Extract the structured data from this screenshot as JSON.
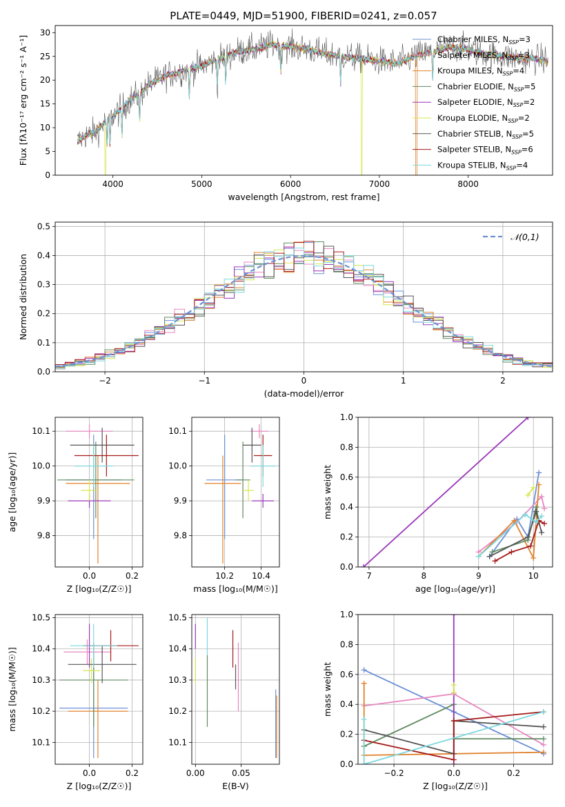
{
  "title": "PLATE=0449, MJD=51900, FIBERID=0241, z=0.057",
  "colors": [
    "#6a8fd6",
    "#e785c0",
    "#e0812a",
    "#5e8a5e",
    "#9a35b8",
    "#d6e64a",
    "#555555",
    "#a51818",
    "#7ad8dd"
  ],
  "legend": [
    {
      "name": "Chabrier MILES, N",
      "sub": "SSP",
      "tail": "=3"
    },
    {
      "name": "Salpeter MILES, N",
      "sub": "SSP",
      "tail": "=3"
    },
    {
      "name": "Kroupa MILES, N",
      "sub": "SSP",
      "tail": "=4"
    },
    {
      "name": "Chabrier ELODIE, N",
      "sub": "SSP",
      "tail": "=5"
    },
    {
      "name": "Salpeter ELODIE, N",
      "sub": "SSP",
      "tail": "=2"
    },
    {
      "name": "Kroupa ELODIE, N",
      "sub": "SSP",
      "tail": "=2"
    },
    {
      "name": "Chabrier STELIB, N",
      "sub": "SSP",
      "tail": "=5"
    },
    {
      "name": "Salpeter STELIB, N",
      "sub": "SSP",
      "tail": "=6"
    },
    {
      "name": "Kroupa STELIB, N",
      "sub": "SSP",
      "tail": "=4"
    }
  ],
  "chart_data": [
    {
      "id": "spectrum",
      "type": "line",
      "xlabel": "wavelength [Angstrom, rest frame]",
      "ylabel": "Flux [fλ10⁻¹⁷ erg cm⁻² s⁻¹ A⁻¹]",
      "xlim": [
        3350,
        8950
      ],
      "ylim": [
        0,
        31.5
      ],
      "xticks": [
        4000,
        5000,
        6000,
        7000,
        8000
      ],
      "yticks": [
        0,
        5,
        10,
        15,
        20,
        25,
        30
      ],
      "continuum": [
        [
          3600,
          7
        ],
        [
          3700,
          8.5
        ],
        [
          3800,
          9
        ],
        [
          3900,
          11
        ],
        [
          4000,
          12.5
        ],
        [
          4100,
          14
        ],
        [
          4200,
          16
        ],
        [
          4300,
          17
        ],
        [
          4400,
          19
        ],
        [
          4500,
          20
        ],
        [
          4600,
          21
        ],
        [
          4800,
          22
        ],
        [
          5000,
          23
        ],
        [
          5200,
          24.5
        ],
        [
          5400,
          26
        ],
        [
          5600,
          26.5
        ],
        [
          5800,
          27.5
        ],
        [
          6000,
          27
        ],
        [
          6200,
          26.5
        ],
        [
          6400,
          25.5
        ],
        [
          6600,
          25
        ],
        [
          6800,
          24.5
        ],
        [
          7000,
          24
        ],
        [
          7200,
          23.5
        ],
        [
          7400,
          25
        ],
        [
          7600,
          26
        ],
        [
          7800,
          27
        ],
        [
          8000,
          26.5
        ],
        [
          8200,
          25.5
        ],
        [
          8400,
          25
        ],
        [
          8600,
          24.5
        ],
        [
          8800,
          24.5
        ],
        [
          8900,
          24
        ]
      ]
    },
    {
      "id": "residuals",
      "type": "bar",
      "xlabel": "(data-model)/error",
      "ylabel": "Normed distribution",
      "xlim": [
        -2.5,
        2.5
      ],
      "ylim": [
        0,
        0.515
      ],
      "xticks": [
        -2,
        -1,
        0,
        1,
        2
      ],
      "yticks": [
        0.0,
        0.1,
        0.2,
        0.3,
        0.4,
        0.5
      ],
      "bin_width": 0.1,
      "legend": "𝒩(0,1)"
    },
    {
      "id": "age_vs_Z",
      "type": "scatter",
      "xlabel": "Z [log₁₀(Z/Z☉)]",
      "ylabel": "age  [log₁₀(age/yr)]",
      "xlim": [
        -0.16,
        0.25
      ],
      "ylim": [
        9.71,
        10.14
      ],
      "xticks": [
        0.0,
        0.2
      ],
      "yticks": [
        9.8,
        9.9,
        10.0,
        10.1
      ],
      "points": [
        {
          "x": 0.02,
          "y": 9.96,
          "xerr": 0.13,
          "yerr": [
            0.17,
            0.13
          ]
        },
        {
          "x": 0.0,
          "y": 10.1,
          "xerr": 0.11,
          "yerr": 0.02
        },
        {
          "x": 0.04,
          "y": 9.95,
          "xerr": 0.15,
          "yerr": [
            0.23,
            0.08
          ]
        },
        {
          "x": 0.03,
          "y": 9.96,
          "xerr": 0.18,
          "yerr": 0.11
        },
        {
          "x": 0.0,
          "y": 9.9,
          "xerr": 0.1,
          "yerr": 0.02
        },
        {
          "x": 0.0,
          "y": 9.93,
          "xerr": 0.04,
          "yerr": 0.03
        },
        {
          "x": 0.06,
          "y": 10.06,
          "xerr": 0.15,
          "yerr": 0.05
        },
        {
          "x": 0.08,
          "y": 10.03,
          "xerr": 0.15,
          "yerr": 0.06
        },
        {
          "x": 0.02,
          "y": 10.0,
          "xerr": 0.09,
          "yerr": 0.06
        }
      ]
    },
    {
      "id": "age_vs_mass",
      "type": "scatter",
      "xlabel": "mass [log₁₀(M/M☉)]",
      "ylabel": "",
      "xlim": [
        10.02,
        10.5
      ],
      "ylim": [
        9.71,
        10.14
      ],
      "xticks": [
        10.2,
        10.4
      ],
      "yticks": [
        9.8,
        9.9,
        10.0,
        10.1
      ],
      "points": [
        {
          "x": 10.2,
          "y": 9.96,
          "xerr": 0.1,
          "yerr": [
            0.17,
            0.13
          ]
        },
        {
          "x": 10.39,
          "y": 10.1,
          "xerr": 0.05,
          "yerr": 0.02
        },
        {
          "x": 10.19,
          "y": 9.95,
          "xerr": 0.1,
          "yerr": [
            0.23,
            0.08
          ]
        },
        {
          "x": 10.3,
          "y": 9.96,
          "xerr": 0.04,
          "yerr": 0.11
        },
        {
          "x": 10.41,
          "y": 9.9,
          "xerr": 0.06,
          "yerr": 0.02
        },
        {
          "x": 10.33,
          "y": 9.93,
          "xerr": 0.03,
          "yerr": 0.03
        },
        {
          "x": 10.35,
          "y": 10.06,
          "xerr": 0.05,
          "yerr": 0.05
        },
        {
          "x": 10.41,
          "y": 10.03,
          "xerr": 0.05,
          "yerr": 0.06
        },
        {
          "x": 10.41,
          "y": 10.0,
          "xerr": 0.07,
          "yerr": 0.06
        }
      ]
    },
    {
      "id": "weight_vs_age",
      "type": "line",
      "xlabel": "age  [log₁₀(age/yr)]",
      "ylabel": "mass weight",
      "xlim": [
        6.8,
        10.35
      ],
      "ylim": [
        0,
        1
      ],
      "xticks": [
        7,
        8,
        9,
        10
      ],
      "yticks": [
        0.0,
        0.2,
        0.4,
        0.6,
        0.8,
        1.0
      ],
      "series": [
        {
          "points": [
            [
              9.2,
              0.07
            ],
            [
              9.7,
              0.32
            ],
            [
              9.9,
              0.2
            ],
            [
              10.1,
              0.63
            ]
          ]
        },
        {
          "points": [
            [
              9.0,
              0.1
            ],
            [
              9.7,
              0.3
            ],
            [
              10.15,
              0.47
            ],
            [
              10.2,
              0.39
            ]
          ]
        },
        {
          "points": [
            [
              9.0,
              0.07
            ],
            [
              9.65,
              0.31
            ],
            [
              10.0,
              0.06
            ],
            [
              10.1,
              0.55
            ]
          ]
        },
        {
          "points": [
            [
              9.25,
              0.1
            ],
            [
              9.9,
              0.18
            ],
            [
              10.05,
              0.4
            ],
            [
              10.1,
              0.3
            ]
          ]
        },
        {
          "points": [
            [
              6.9,
              0.0
            ],
            [
              9.9,
              1.0
            ]
          ]
        },
        {
          "points": [
            [
              9.9,
              0.48
            ],
            [
              10.0,
              0.53
            ]
          ]
        },
        {
          "points": [
            [
              9.2,
              0.07
            ],
            [
              9.9,
              0.2
            ],
            [
              10.05,
              0.37
            ],
            [
              10.15,
              0.23
            ]
          ]
        },
        {
          "points": [
            [
              9.3,
              0.04
            ],
            [
              9.6,
              0.1
            ],
            [
              9.95,
              0.14
            ],
            [
              10.1,
              0.31
            ],
            [
              10.2,
              0.29
            ]
          ]
        },
        {
          "points": [
            [
              9.0,
              0.07
            ],
            [
              9.85,
              0.35
            ],
            [
              10.05,
              0.3
            ],
            [
              10.15,
              0.34
            ]
          ]
        }
      ]
    },
    {
      "id": "mass_vs_Z",
      "type": "scatter",
      "xlabel": "Z [log₁₀(Z/Z☉)]",
      "ylabel": "mass [log₁₀(M/M☉)]",
      "xlim": [
        -0.16,
        0.25
      ],
      "ylim": [
        10.03,
        10.51
      ],
      "xticks": [
        0.0,
        0.2
      ],
      "yticks": [
        10.1,
        10.2,
        10.3,
        10.4,
        10.5
      ],
      "points": [
        {
          "x": 0.02,
          "y": 10.21,
          "xerr": 0.16,
          "yerr": [
            0.16,
            0.17
          ]
        },
        {
          "x": -0.01,
          "y": 10.39,
          "xerr": 0.11,
          "yerr": 0.04
        },
        {
          "x": 0.04,
          "y": 10.2,
          "xerr": 0.14,
          "yerr": [
            0.15,
            0.1
          ]
        },
        {
          "x": 0.02,
          "y": 10.3,
          "xerr": 0.16,
          "yerr": [
            0.15,
            0.12
          ]
        },
        {
          "x": 0.0,
          "y": 10.41,
          "xerr": 0.02,
          "yerr": 0.07
        },
        {
          "x": 0.01,
          "y": 10.33,
          "xerr": 0.04,
          "yerr": 0.04
        },
        {
          "x": 0.06,
          "y": 10.35,
          "xerr": 0.16,
          "yerr": 0.06
        },
        {
          "x": 0.1,
          "y": 10.41,
          "xerr": 0.13,
          "yerr": 0.05
        },
        {
          "x": 0.02,
          "y": 10.41,
          "xerr": 0.11,
          "yerr": 0.07
        }
      ]
    },
    {
      "id": "mass_vs_EBV",
      "type": "scatter",
      "xlabel": "E(B-V)",
      "ylabel": "",
      "xlim": [
        -0.004,
        0.092
      ],
      "ylim": [
        10.03,
        10.51
      ],
      "xticks": [
        0.0,
        0.05
      ],
      "yticks": [
        10.1,
        10.2,
        10.3,
        10.4,
        10.5
      ],
      "points": [
        {
          "x": 0.088,
          "y": 10.21,
          "yerr": [
            0.16,
            0.06
          ]
        },
        {
          "x": 0.047,
          "y": 10.34,
          "yerr": [
            0.14,
            0.08
          ]
        },
        {
          "x": 0.089,
          "y": 10.15,
          "yerr": [
            0.1,
            0.1
          ]
        },
        {
          "x": 0.013,
          "y": 10.3,
          "yerr": [
            0.15,
            0.08
          ]
        },
        {
          "x": 0.0,
          "y": 10.44,
          "yerr": 0.04
        },
        {
          "x": 0.0,
          "y": 10.33,
          "yerr": 0.04
        },
        {
          "x": 0.044,
          "y": 10.31,
          "yerr": 0.04
        },
        {
          "x": 0.041,
          "y": 10.4,
          "yerr": 0.06
        },
        {
          "x": 0.013,
          "y": 10.44,
          "yerr": 0.06
        }
      ]
    },
    {
      "id": "weight_vs_Z",
      "type": "line",
      "xlabel": "Z [log₁₀(Z/Z☉)]",
      "ylabel": "mass weight",
      "xlim": [
        -0.32,
        0.33
      ],
      "ylim": [
        0,
        1
      ],
      "xticks": [
        -0.2,
        0.0,
        0.2
      ],
      "yticks": [
        0.0,
        0.2,
        0.4,
        0.6,
        0.8,
        1.0
      ],
      "series": [
        {
          "points": [
            [
              -0.3,
              0.63
            ],
            [
              0.0,
              0.35
            ],
            [
              0.3,
              0.07
            ]
          ]
        },
        {
          "points": [
            [
              -0.3,
              0.39
            ],
            [
              0.0,
              0.47
            ],
            [
              0.3,
              0.13
            ]
          ]
        },
        {
          "points": [
            [
              -0.3,
              0.54
            ],
            [
              -0.3,
              0.06
            ],
            [
              0.0,
              0.07
            ],
            [
              0.3,
              0.08
            ]
          ]
        },
        {
          "points": [
            [
              -0.3,
              0.12
            ],
            [
              0.0,
              0.4
            ],
            [
              0.0,
              0.17
            ],
            [
              0.3,
              0.17
            ]
          ]
        },
        {
          "points": [
            [
              0.0,
              0.0
            ],
            [
              0.0,
              1.0
            ]
          ]
        },
        {
          "points": [
            [
              0.0,
              0.48
            ],
            [
              0.0,
              0.53
            ]
          ]
        },
        {
          "points": [
            [
              -0.3,
              0.23
            ],
            [
              0.0,
              0.07
            ],
            [
              0.0,
              0.29
            ],
            [
              0.3,
              0.25
            ]
          ]
        },
        {
          "points": [
            [
              -0.3,
              0.16
            ],
            [
              0.0,
              0.03
            ],
            [
              0.0,
              0.29
            ],
            [
              0.3,
              0.35
            ]
          ]
        },
        {
          "points": [
            [
              -0.3,
              0.3
            ],
            [
              -0.3,
              0.0
            ],
            [
              0.3,
              0.35
            ]
          ]
        }
      ]
    }
  ]
}
